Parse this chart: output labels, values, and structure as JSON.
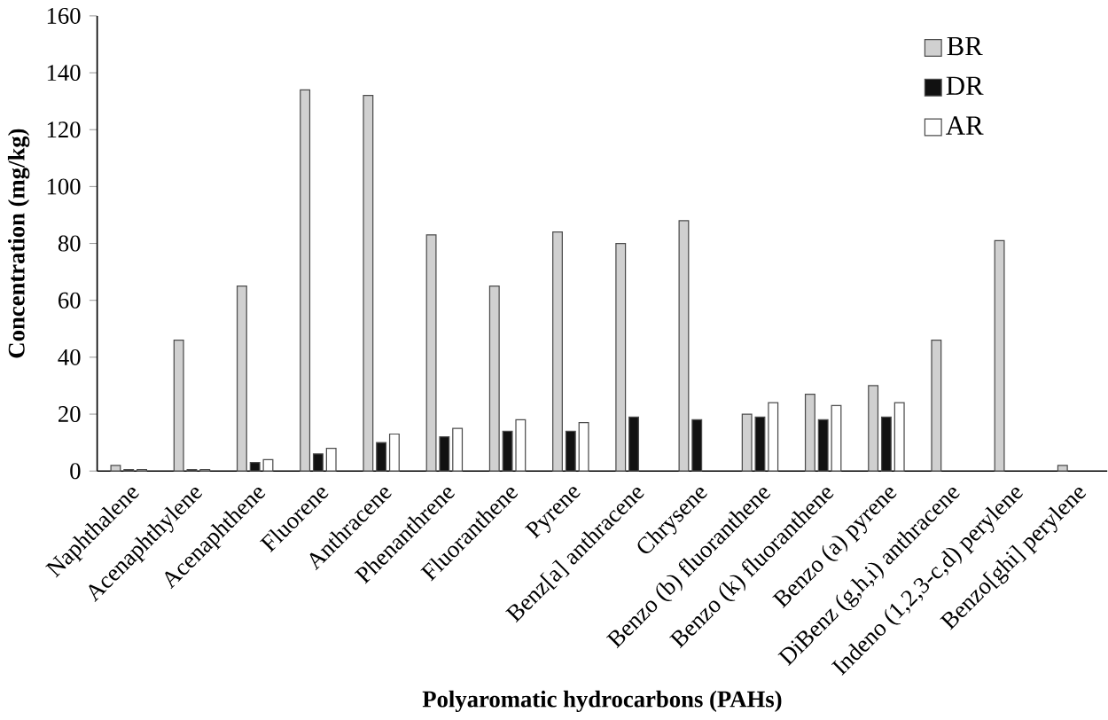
{
  "chart_data": {
    "type": "bar",
    "xlabel": "Polyaromatic hydrocarbons (PAHs)",
    "ylabel": "Concentration (mg/kg)",
    "categories": [
      "Naphthalene",
      "Acenaphthylene",
      "Acenaphthene",
      "Fluorene",
      "Anthracene",
      "Phenanthrene",
      "Fluoranthene",
      "Pyrene",
      "Benz[a] anthracene",
      "Chrysene",
      "Benzo (b) fluoranthene",
      "Benzo (k) fluoranthene",
      "Benzo (a) pyrene",
      "DiBenz (g,h,i) anthracene",
      "Indeno (1,2,3-c,d) perylene",
      "Benzo[ghi] perylene"
    ],
    "series": [
      {
        "name": "BR",
        "color": "#d0d0d0",
        "values": [
          2,
          46,
          65,
          134,
          132,
          83,
          65,
          84,
          80,
          88,
          20,
          27,
          30,
          46,
          81,
          2
        ]
      },
      {
        "name": "DR",
        "color": "#111111",
        "values": [
          0.5,
          0.5,
          3,
          6,
          10,
          12,
          14,
          14,
          19,
          18,
          19,
          18,
          19,
          null,
          null,
          null
        ]
      },
      {
        "name": "AR",
        "color": "#ffffff",
        "values": [
          0.5,
          0.5,
          4,
          8,
          13,
          15,
          18,
          17,
          null,
          null,
          24,
          23,
          24,
          null,
          null,
          null
        ]
      }
    ],
    "ylim": [
      0,
      160
    ],
    "yticks": [
      0,
      20,
      40,
      60,
      80,
      100,
      120,
      140,
      160
    ],
    "grid": false,
    "legend": "top right"
  }
}
